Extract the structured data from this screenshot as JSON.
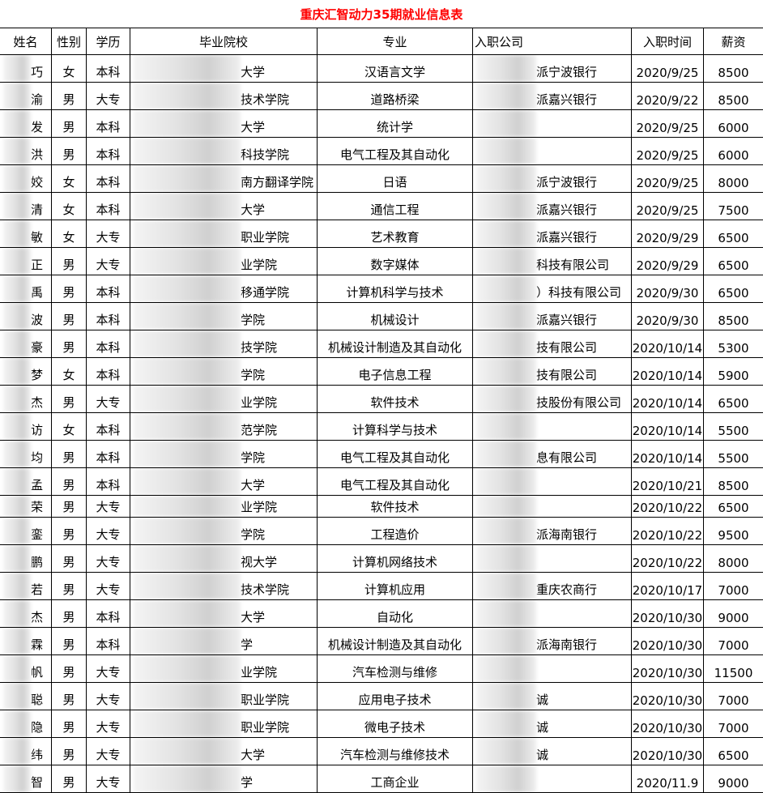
{
  "title": "重庆汇智动力35期就业信息表",
  "title_color": "#ff0000",
  "headers": [
    "姓名",
    "性别",
    "学历",
    "毕业院校",
    "专业",
    "入职公司",
    "入职时间",
    "薪资"
  ],
  "rows": [
    {
      "name": "巧",
      "gender": "女",
      "edu": "本科",
      "school": "大学",
      "major": "汉语言文学",
      "company": "派宁波银行",
      "date": "2020/9/25",
      "salary": "8500"
    },
    {
      "name": "渝",
      "gender": "男",
      "edu": "大专",
      "school": "技术学院",
      "major": "道路桥梁",
      "company": "派嘉兴银行",
      "date": "2020/9/22",
      "salary": "8500"
    },
    {
      "name": "发",
      "gender": "男",
      "edu": "本科",
      "school": "大学",
      "major": "统计学",
      "company": "",
      "date": "2020/9/25",
      "salary": "6000"
    },
    {
      "name": "洪",
      "gender": "男",
      "edu": "本科",
      "school": "科技学院",
      "major": "电气工程及其自动化",
      "company": "",
      "date": "2020/9/25",
      "salary": "6000"
    },
    {
      "name": "姣",
      "gender": "女",
      "edu": "本科",
      "school": "南方翻译学院",
      "major": "日语",
      "company": "派宁波银行",
      "date": "2020/9/25",
      "salary": "8000"
    },
    {
      "name": "清",
      "gender": "女",
      "edu": "本科",
      "school": "大学",
      "major": "通信工程",
      "company": "派嘉兴银行",
      "date": "2020/9/25",
      "salary": "7500"
    },
    {
      "name": "敏",
      "gender": "女",
      "edu": "大专",
      "school": "职业学院",
      "major": "艺术教育",
      "company": "派嘉兴银行",
      "date": "2020/9/29",
      "salary": "6500"
    },
    {
      "name": "正",
      "gender": "男",
      "edu": "大专",
      "school": "业学院",
      "major": "数字媒体",
      "company": "科技有限公司",
      "date": "2020/9/29",
      "salary": "6500"
    },
    {
      "name": "禹",
      "gender": "男",
      "edu": "本科",
      "school": "移通学院",
      "major": "计算机科学与技术",
      "company": "）科技有限公司",
      "date": "2020/9/30",
      "salary": "6500"
    },
    {
      "name": "波",
      "gender": "男",
      "edu": "本科",
      "school": "学院",
      "major": "机械设计",
      "company": "派嘉兴银行",
      "date": "2020/9/30",
      "salary": "8500"
    },
    {
      "name": "豪",
      "gender": "男",
      "edu": "本科",
      "school": "技学院",
      "major": "机械设计制造及其自动化",
      "company": "技有限公司",
      "date": "2020/10/14",
      "salary": "5300"
    },
    {
      "name": "梦",
      "gender": "女",
      "edu": "本科",
      "school": "学院",
      "major": "电子信息工程",
      "company": "技有限公司",
      "date": "2020/10/14",
      "salary": "5900"
    },
    {
      "name": "杰",
      "gender": "男",
      "edu": "大专",
      "school": "业学院",
      "major": "软件技术",
      "company": "技股份有限公司",
      "date": "2020/10/14",
      "salary": "6500"
    },
    {
      "name": "访",
      "gender": "女",
      "edu": "本科",
      "school": "范学院",
      "major": "计算科学与技术",
      "company": "",
      "date": "2020/10/14",
      "salary": "5500"
    },
    {
      "name": "均",
      "gender": "男",
      "edu": "本科",
      "school": "学院",
      "major": "电气工程及其自动化",
      "company": "息有限公司",
      "date": "2020/10/14",
      "salary": "5500"
    },
    {
      "name": "孟",
      "gender": "男",
      "edu": "本科",
      "school": "大学",
      "major": "电气工程及其自动化",
      "company": "",
      "date": "2020/10/21",
      "salary": "8500"
    },
    {
      "name": "荣",
      "gender": "男",
      "edu": "大专",
      "school": "业学院",
      "major": "软件技术",
      "company": "",
      "date": "2020/10/22",
      "salary": "6500"
    },
    {
      "name": "銮",
      "gender": "男",
      "edu": "大专",
      "school": "学院",
      "major": "工程造价",
      "company": "派海南银行",
      "date": "2020/10/22",
      "salary": "9500"
    },
    {
      "name": "鹏",
      "gender": "男",
      "edu": "大专",
      "school": "视大学",
      "major": "计算机网络技术",
      "company": "",
      "date": "2020/10/22",
      "salary": "8000"
    },
    {
      "name": "若",
      "gender": "男",
      "edu": "大专",
      "school": "技术学院",
      "major": "计算机应用",
      "company": "重庆农商行",
      "date": "2020/10/17",
      "salary": "7000"
    },
    {
      "name": "杰",
      "gender": "男",
      "edu": "本科",
      "school": "大学",
      "major": "自动化",
      "company": "",
      "date": "2020/10/30",
      "salary": "9000"
    },
    {
      "name": "霖",
      "gender": "男",
      "edu": "本科",
      "school": "学",
      "major": "机械设计制造及其自动化",
      "company": "派海南银行",
      "date": "2020/10/30",
      "salary": "7000"
    },
    {
      "name": "帆",
      "gender": "男",
      "edu": "大专",
      "school": "业学院",
      "major": "汽车检测与维修",
      "company": "",
      "date": "2020/10/30",
      "salary": "11500"
    },
    {
      "name": "聪",
      "gender": "男",
      "edu": "大专",
      "school": "职业学院",
      "major": "应用电子技术",
      "company": "诚",
      "date": "2020/10/30",
      "salary": "7000"
    },
    {
      "name": "隐",
      "gender": "男",
      "edu": "大专",
      "school": "职业学院",
      "major": "微电子技术",
      "company": "诚",
      "date": "2020/10/30",
      "salary": "7000"
    },
    {
      "name": "纬",
      "gender": "男",
      "edu": "大专",
      "school": "大学",
      "major": "汽车检测与维修技术",
      "company": "诚",
      "date": "2020/10/30",
      "salary": "6500"
    },
    {
      "name": "智",
      "gender": "男",
      "edu": "大专",
      "school": "学",
      "major": "工商企业",
      "company": "",
      "date": "2020/11.9",
      "salary": "9000"
    }
  ]
}
